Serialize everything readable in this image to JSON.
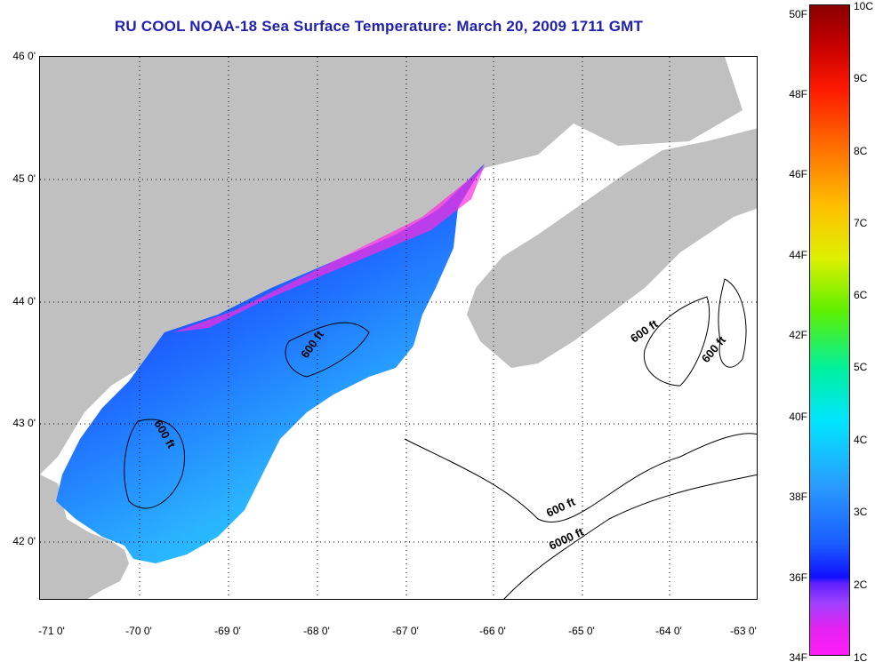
{
  "title": "RU COOL  NOAA-18  Sea Surface Temperature:  March 20, 2009 1711 GMT",
  "lat_labels": [
    "46 0'",
    "45 0'",
    "44 0'",
    "43 0'",
    "42 0'"
  ],
  "lon_labels": [
    "-71 0'",
    "-70 0'",
    "-69 0'",
    "-68 0'",
    "-67 0'",
    "-66 0'",
    "-65 0'",
    "-64 0'",
    "-63 0'"
  ],
  "colorbar": {
    "fahrenheit": [
      "50F",
      "48F",
      "46F",
      "44F",
      "42F",
      "40F",
      "38F",
      "36F",
      "34F"
    ],
    "celsius": [
      "10C",
      "9C",
      "8C",
      "7C",
      "6C",
      "5C",
      "4C",
      "3C",
      "2C",
      "1C"
    ]
  },
  "depth_contour_labels": [
    "600 ft",
    "600 ft",
    "600 ft",
    "600 ft",
    "6000 ft",
    "600 ft"
  ],
  "colors": {
    "land": "#c0c0c0",
    "title": "#1f1fb0",
    "cold_min": "#ff1ef8",
    "cold_blue": "#1010ff",
    "mid_cyan": "#00e5ff",
    "warm_max": "#8a0000"
  }
}
